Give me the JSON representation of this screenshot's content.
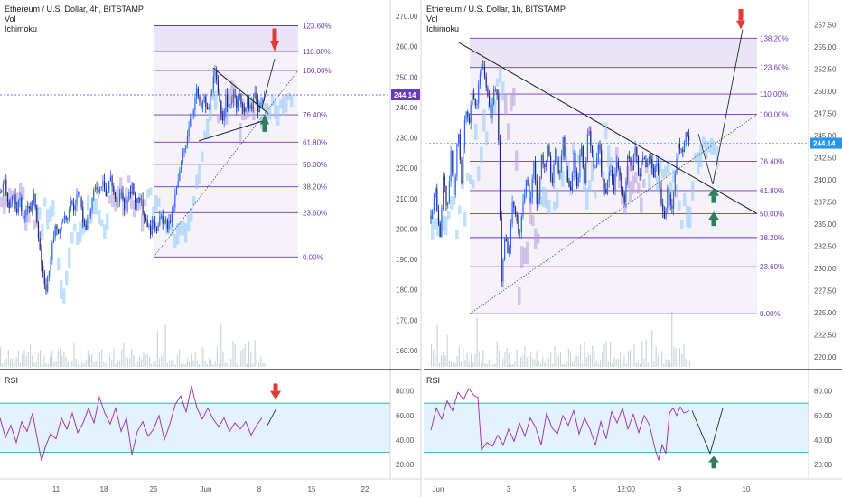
{
  "colors": {
    "fib_line": "#673ab7",
    "fib_text": "#673ab7",
    "fib_shade": "#ede7f6",
    "fib_shade_top": "#e3dcf2",
    "price_badge": "#673ab7",
    "price_badge_right": "#2196f3",
    "cloud_blue": "#90caf9",
    "cloud_purple": "#b39ddb",
    "candle": "#2962ff",
    "candle_dark": "#1a237e",
    "volume": "#b0bec5",
    "rsi_line": "#9c27b0",
    "rsi_band": "#e3f2fd",
    "rsi_band_line": "#26a69a",
    "arrow_up": "#2e7d5b",
    "arrow_down": "#e53935",
    "axis_text": "#50535e",
    "divider": "#131722"
  },
  "left_panel": {
    "title": "Ethereum / U.S. Dollar, 4h, BITSTAMP",
    "indicator_1": "Vol",
    "indicator_2": "Ichimoku",
    "rsi_label": "RSI",
    "price_badge": "244.14",
    "price_axis": [
      "270.00",
      "260.00",
      "250.00",
      "240.00",
      "230.00",
      "220.00",
      "210.00",
      "200.00",
      "190.00",
      "180.00",
      "170.00",
      "160.00"
    ],
    "rsi_axis": [
      "80.00",
      "60.00",
      "40.00",
      "20.00"
    ],
    "time_axis": [
      "11",
      "18",
      "25",
      "Jun",
      "8",
      "15",
      "22"
    ],
    "fib_levels": [
      {
        "label": "0.00%",
        "price": 190.8
      },
      {
        "label": "23.60%",
        "price": 205.4
      },
      {
        "label": "38.20%",
        "price": 213.9
      },
      {
        "label": "50.00%",
        "price": 221.3
      },
      {
        "label": "61.80%",
        "price": 228.6
      },
      {
        "label": "76.40%",
        "price": 237.6
      },
      {
        "label": "100.00%",
        "price": 252.2
      },
      {
        "label": "110.00%",
        "price": 258.4
      },
      {
        "label": "123.60%",
        "price": 266.9
      }
    ]
  },
  "right_panel": {
    "title": "Ethereum / U.S. Dollar, 1h, BITSTAMP",
    "indicator_1": "Vol",
    "indicator_2": "Ichimoku",
    "rsi_label": "RSI",
    "price_badge": "244.14",
    "price_axis": [
      "257.50",
      "255.00",
      "252.50",
      "250.00",
      "247.50",
      "245.00",
      "242.50",
      "240.00",
      "237.50",
      "235.00",
      "232.50",
      "230.00",
      "227.50",
      "225.00",
      "222.50",
      "220.00"
    ],
    "rsi_axis": [
      "80.00",
      "60.00",
      "40.00",
      "20.00"
    ],
    "time_axis": [
      "Jun",
      "3",
      "5",
      "12:00",
      "8",
      "10"
    ],
    "fib_levels": [
      {
        "label": "0.00%",
        "price": 224.9
      },
      {
        "label": "23.60%",
        "price": 230.2
      },
      {
        "label": "38.20%",
        "price": 233.5
      },
      {
        "label": "50.00%",
        "price": 236.2
      },
      {
        "label": "61.80%",
        "price": 238.8
      },
      {
        "label": "76.40%",
        "price": 242.1
      },
      {
        "label": "100.00%",
        "price": 247.4
      },
      {
        "label": "110.00%",
        "price": 249.7
      },
      {
        "label": "123.60%",
        "price": 252.7
      },
      {
        "label": "138.20%",
        "price": 256.0
      }
    ]
  },
  "chart_data": [
    {
      "type": "candlestick",
      "title": "Ethereum / U.S. Dollar, 4h, BITSTAMP",
      "ylim": [
        157,
        273
      ],
      "x_ticks": [
        "11",
        "18",
        "25",
        "Jun",
        "8",
        "15",
        "22"
      ],
      "last_price": 244.14,
      "close_path": [
        [
          0,
          212
        ],
        [
          5,
          215
        ],
        [
          10,
          206
        ],
        [
          14,
          213
        ],
        [
          18,
          204
        ],
        [
          22,
          211
        ],
        [
          26,
          201
        ],
        [
          30,
          209
        ],
        [
          34,
          207
        ],
        [
          38,
          211
        ],
        [
          42,
          200
        ],
        [
          46,
          188
        ],
        [
          50,
          179
        ],
        [
          54,
          186
        ],
        [
          58,
          195
        ],
        [
          62,
          201
        ],
        [
          66,
          199
        ],
        [
          70,
          205
        ],
        [
          74,
          201
        ],
        [
          78,
          210
        ],
        [
          82,
          206
        ],
        [
          86,
          213
        ],
        [
          90,
          206
        ],
        [
          94,
          200
        ],
        [
          98,
          203
        ],
        [
          102,
          210
        ],
        [
          106,
          214
        ],
        [
          110,
          213
        ],
        [
          114,
          217
        ],
        [
          118,
          210
        ],
        [
          122,
          218
        ],
        [
          126,
          212
        ],
        [
          130,
          207
        ],
        [
          134,
          213
        ],
        [
          138,
          206
        ],
        [
          142,
          210
        ],
        [
          146,
          214
        ],
        [
          150,
          209
        ],
        [
          154,
          212
        ],
        [
          158,
          206
        ],
        [
          162,
          203
        ],
        [
          166,
          199
        ],
        [
          170,
          203
        ],
        [
          174,
          200
        ],
        [
          178,
          204
        ],
        [
          182,
          202
        ],
        [
          186,
          201
        ],
        [
          190,
          204
        ],
        [
          194,
          211
        ],
        [
          198,
          217
        ],
        [
          202,
          224
        ],
        [
          206,
          229
        ],
        [
          210,
          236
        ],
        [
          214,
          240
        ],
        [
          218,
          246
        ],
        [
          222,
          239
        ],
        [
          226,
          243
        ],
        [
          230,
          238
        ],
        [
          234,
          246
        ],
        [
          238,
          251
        ],
        [
          242,
          243
        ],
        [
          246,
          236
        ],
        [
          250,
          243
        ],
        [
          254,
          239
        ],
        [
          258,
          245
        ],
        [
          262,
          240
        ],
        [
          266,
          244
        ],
        [
          270,
          237
        ],
        [
          274,
          243
        ],
        [
          278,
          238
        ],
        [
          282,
          245
        ],
        [
          286,
          239
        ],
        [
          290,
          242
        ],
        [
          294,
          244.14
        ]
      ],
      "rsi": [
        [
          0,
          58
        ],
        [
          6,
          42
        ],
        [
          12,
          52
        ],
        [
          18,
          38
        ],
        [
          24,
          55
        ],
        [
          30,
          47
        ],
        [
          36,
          62
        ],
        [
          42,
          38
        ],
        [
          46,
          23
        ],
        [
          50,
          34
        ],
        [
          56,
          45
        ],
        [
          62,
          41
        ],
        [
          68,
          58
        ],
        [
          74,
          49
        ],
        [
          80,
          62
        ],
        [
          86,
          46
        ],
        [
          92,
          54
        ],
        [
          98,
          66
        ],
        [
          104,
          54
        ],
        [
          110,
          75
        ],
        [
          116,
          62
        ],
        [
          122,
          53
        ],
        [
          128,
          66
        ],
        [
          134,
          47
        ],
        [
          140,
          58
        ],
        [
          146,
          28
        ],
        [
          152,
          47
        ],
        [
          158,
          55
        ],
        [
          164,
          43
        ],
        [
          170,
          49
        ],
        [
          176,
          60
        ],
        [
          182,
          40
        ],
        [
          188,
          53
        ],
        [
          194,
          69
        ],
        [
          200,
          76
        ],
        [
          206,
          63
        ],
        [
          212,
          84
        ],
        [
          218,
          66
        ],
        [
          224,
          57
        ],
        [
          230,
          66
        ],
        [
          236,
          57
        ],
        [
          242,
          51
        ],
        [
          248,
          58
        ],
        [
          254,
          47
        ],
        [
          260,
          54
        ],
        [
          266,
          49
        ],
        [
          272,
          55
        ],
        [
          278,
          44
        ],
        [
          284,
          52
        ],
        [
          290,
          58
        ]
      ],
      "fib_levels": [
        [
          "0.00%",
          190.8
        ],
        [
          "23.60%",
          205.4
        ],
        [
          "38.20%",
          213.9
        ],
        [
          "50.00%",
          221.3
        ],
        [
          "61.80%",
          228.6
        ],
        [
          "76.40%",
          237.6
        ],
        [
          "100.00%",
          252.2
        ],
        [
          "110.00%",
          258.4
        ],
        [
          "123.60%",
          266.9
        ]
      ],
      "rsi_ylim": [
        15,
        90
      ],
      "rsi_band": [
        30,
        70
      ]
    },
    {
      "type": "candlestick",
      "title": "Ethereum / U.S. Dollar, 1h, BITSTAMP",
      "ylim": [
        219,
        259.5
      ],
      "x_ticks": [
        "Jun",
        "3",
        "5",
        "12:00",
        "8",
        "10"
      ],
      "last_price": 244.14,
      "close_path": [
        [
          0,
          236
        ],
        [
          5,
          239
        ],
        [
          10,
          233
        ],
        [
          14,
          241
        ],
        [
          18,
          236
        ],
        [
          22,
          243
        ],
        [
          26,
          238
        ],
        [
          30,
          246
        ],
        [
          34,
          240
        ],
        [
          38,
          248
        ],
        [
          42,
          246
        ],
        [
          46,
          250
        ],
        [
          50,
          248
        ],
        [
          54,
          252
        ],
        [
          58,
          253
        ],
        [
          62,
          250
        ],
        [
          66,
          247
        ],
        [
          70,
          251
        ],
        [
          74,
          249
        ],
        [
          78,
          228
        ],
        [
          82,
          234
        ],
        [
          86,
          231
        ],
        [
          90,
          238
        ],
        [
          94,
          236
        ],
        [
          98,
          233
        ],
        [
          102,
          238
        ],
        [
          106,
          240
        ],
        [
          110,
          237
        ],
        [
          114,
          242
        ],
        [
          118,
          236
        ],
        [
          122,
          243
        ],
        [
          126,
          241
        ],
        [
          130,
          244
        ],
        [
          134,
          239
        ],
        [
          138,
          244
        ],
        [
          142,
          240
        ],
        [
          146,
          245
        ],
        [
          150,
          241
        ],
        [
          154,
          238
        ],
        [
          158,
          243
        ],
        [
          162,
          239
        ],
        [
          166,
          244
        ],
        [
          170,
          240
        ],
        [
          174,
          246
        ],
        [
          178,
          243
        ],
        [
          182,
          241
        ],
        [
          186,
          244
        ],
        [
          190,
          240
        ],
        [
          194,
          238
        ],
        [
          198,
          242
        ],
        [
          202,
          239
        ],
        [
          206,
          242
        ],
        [
          210,
          240
        ],
        [
          214,
          237
        ],
        [
          218,
          243
        ],
        [
          222,
          241
        ],
        [
          226,
          244
        ],
        [
          230,
          240
        ],
        [
          234,
          243
        ],
        [
          238,
          241
        ],
        [
          242,
          243
        ],
        [
          246,
          240
        ],
        [
          250,
          242
        ],
        [
          254,
          238
        ],
        [
          258,
          235
        ],
        [
          262,
          239
        ],
        [
          266,
          236
        ],
        [
          270,
          240
        ],
        [
          274,
          244
        ],
        [
          278,
          243
        ],
        [
          282,
          245
        ],
        [
          286,
          244.14
        ]
      ],
      "rsi": [
        [
          0,
          48
        ],
        [
          6,
          66
        ],
        [
          12,
          57
        ],
        [
          18,
          72
        ],
        [
          24,
          64
        ],
        [
          30,
          79
        ],
        [
          36,
          73
        ],
        [
          42,
          82
        ],
        [
          48,
          76
        ],
        [
          52,
          75
        ],
        [
          56,
          32
        ],
        [
          62,
          38
        ],
        [
          68,
          35
        ],
        [
          74,
          44
        ],
        [
          80,
          36
        ],
        [
          86,
          49
        ],
        [
          92,
          39
        ],
        [
          98,
          54
        ],
        [
          104,
          43
        ],
        [
          110,
          58
        ],
        [
          116,
          50
        ],
        [
          122,
          36
        ],
        [
          128,
          62
        ],
        [
          134,
          50
        ],
        [
          140,
          45
        ],
        [
          146,
          60
        ],
        [
          152,
          52
        ],
        [
          158,
          64
        ],
        [
          164,
          45
        ],
        [
          170,
          58
        ],
        [
          176,
          49
        ],
        [
          182,
          36
        ],
        [
          188,
          55
        ],
        [
          194,
          41
        ],
        [
          200,
          63
        ],
        [
          206,
          54
        ],
        [
          212,
          66
        ],
        [
          218,
          49
        ],
        [
          224,
          61
        ],
        [
          230,
          46
        ],
        [
          236,
          60
        ],
        [
          242,
          52
        ],
        [
          248,
          33
        ],
        [
          252,
          24
        ],
        [
          256,
          36
        ],
        [
          260,
          29
        ],
        [
          264,
          62
        ],
        [
          268,
          66
        ],
        [
          272,
          60
        ],
        [
          276,
          67
        ],
        [
          280,
          62
        ],
        [
          286,
          64
        ]
      ],
      "fib_levels": [
        [
          "0.00%",
          224.9
        ],
        [
          "23.60%",
          230.2
        ],
        [
          "38.20%",
          233.5
        ],
        [
          "50.00%",
          236.2
        ],
        [
          "61.80%",
          238.8
        ],
        [
          "76.40%",
          242.1
        ],
        [
          "100.00%",
          247.4
        ],
        [
          "110.00%",
          249.7
        ],
        [
          "123.60%",
          252.7
        ],
        [
          "138.20%",
          256.0
        ]
      ],
      "rsi_ylim": [
        15,
        90
      ],
      "rsi_band": [
        30,
        70
      ]
    }
  ]
}
